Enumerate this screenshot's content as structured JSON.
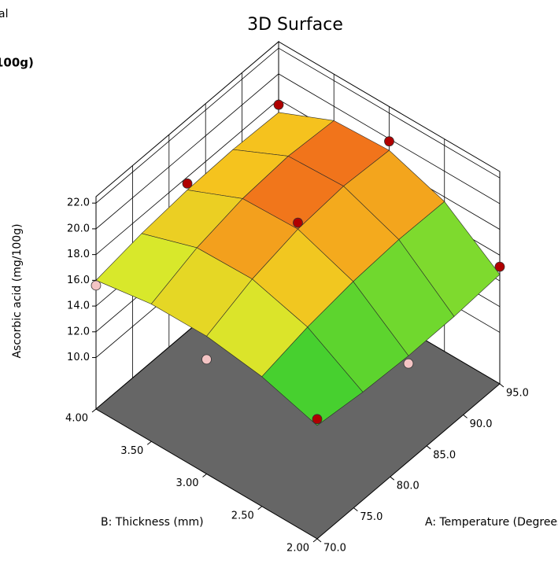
{
  "chart_data": {
    "type": "surface3d",
    "title": "3D Surface",
    "legend_fragments": [
      "al",
      "100g)"
    ],
    "xlabel": "A: Temperature (Degrees)",
    "ylabel": "B: Thickness (mm)",
    "zlabel": "Ascorbic acid (mg/100g)",
    "xlim": [
      70,
      95
    ],
    "ylim": [
      2,
      4
    ],
    "zlim": [
      6,
      22.5
    ],
    "xticks": [
      {
        "value": 70,
        "label": "70.0"
      },
      {
        "value": 75,
        "label": "75.0"
      },
      {
        "value": 80,
        "label": "80.0"
      },
      {
        "value": 85,
        "label": "85.0"
      },
      {
        "value": 90,
        "label": "90.0"
      },
      {
        "value": 95,
        "label": "95.0"
      }
    ],
    "yticks": [
      {
        "value": 2,
        "label": "2.00"
      },
      {
        "value": 2.5,
        "label": "2.50"
      },
      {
        "value": 3,
        "label": "3.00"
      },
      {
        "value": 3.5,
        "label": "3.50"
      },
      {
        "value": 4,
        "label": "4.00"
      }
    ],
    "zticks": [
      {
        "value": 10,
        "label": "10.0"
      },
      {
        "value": 12,
        "label": "12.0"
      },
      {
        "value": 14,
        "label": "14.0"
      },
      {
        "value": 16,
        "label": "16.0"
      },
      {
        "value": 18,
        "label": "18.0"
      },
      {
        "value": 20,
        "label": "20.0"
      },
      {
        "value": 22,
        "label": "22.0"
      }
    ],
    "x": [
      70,
      76.25,
      82.5,
      88.75,
      95
    ],
    "y": [
      2,
      2.5,
      3,
      3.5,
      4
    ],
    "z": [
      [
        14.8,
        14.39,
        14.2,
        14.24,
        14.5
      ],
      [
        16.08,
        16.92,
        17.45,
        17.7,
        17.64
      ],
      [
        16.7,
        18.13,
        19.0,
        19.33,
        19.1
      ],
      [
        16.68,
        18.04,
        18.85,
        19.14,
        18.89
      ],
      [
        16.0,
        16.63,
        17.0,
        17.13,
        17.0
      ]
    ],
    "colormap": [
      "#1aa89a",
      "#3fcf2f",
      "#d6ea2c",
      "#f5c21e",
      "#f0641a"
    ],
    "floor_color": "#666666",
    "points": {
      "x": [
        70,
        82.5,
        95,
        70,
        82.5,
        95,
        70,
        82.5,
        95
      ],
      "y": [
        2,
        2,
        2,
        3,
        3,
        3,
        4,
        4,
        4
      ],
      "z": [
        15.3,
        13.6,
        15.1,
        14.9,
        19.5,
        19.8,
        15.6,
        17.5,
        17.6
      ]
    },
    "point_color": "#b00000",
    "point_below_color": "#f4c4c4"
  }
}
